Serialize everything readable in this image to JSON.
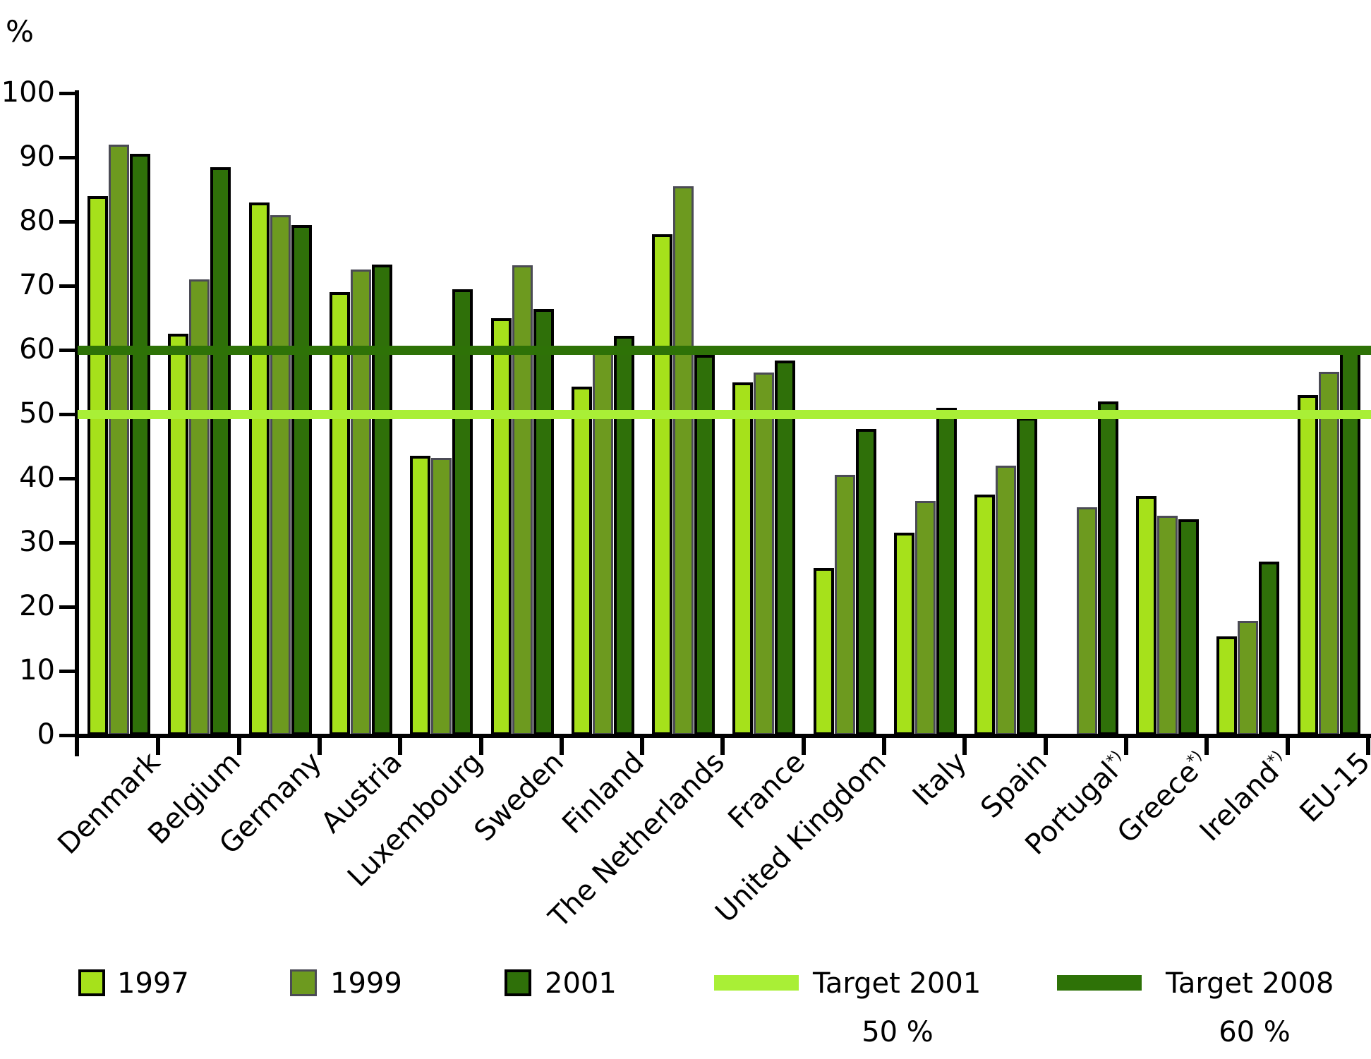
{
  "unit_label": "%",
  "chart_data": {
    "type": "bar",
    "title": "",
    "xlabel": "",
    "ylabel": "%",
    "ylim": [
      0,
      100
    ],
    "y_ticks": [
      0,
      10,
      20,
      30,
      40,
      50,
      60,
      70,
      80,
      90,
      100
    ],
    "grid": false,
    "legend_position": "bottom",
    "categories": [
      "Denmark",
      "Belgium",
      "Germany",
      "Austria",
      "Luxembourg",
      "Sweden",
      "Finland",
      "The Netherlands",
      "France",
      "United Kingdom",
      "Italy",
      "Spain",
      "Portugal",
      "Greece",
      "Ireland",
      "EU-15"
    ],
    "category_footnotes": [
      "",
      "",
      "",
      "",
      "",
      "",
      "",
      "",
      "",
      "",
      "",
      "",
      "*)",
      "*)",
      "*)",
      ""
    ],
    "series": [
      {
        "name": "1997",
        "color": "#a6e11b",
        "border_color": "#000000",
        "values": [
          84,
          62.5,
          83,
          69,
          43.5,
          65,
          54.3,
          78,
          55,
          26,
          31.5,
          37.5,
          null,
          37.2,
          15.4,
          53
        ]
      },
      {
        "name": "1999",
        "color": "#6d9a1f",
        "border_color": "#4b4b55",
        "values": [
          92,
          71,
          81,
          72.5,
          43.2,
          73.2,
          60.5,
          85.5,
          56.5,
          40.5,
          36.5,
          42,
          35.5,
          34.2,
          17.8,
          56.6
        ]
      },
      {
        "name": "2001",
        "color": "#2f7009",
        "border_color": "#000000",
        "values": [
          90.5,
          88.5,
          79.5,
          73.3,
          69.5,
          66.4,
          62.2,
          59.2,
          58.3,
          47.7,
          51,
          49.5,
          52,
          33.6,
          27,
          60.3
        ]
      }
    ],
    "target_lines": [
      {
        "name": "Target 2001",
        "value": 50,
        "color": "#a9ef36"
      },
      {
        "name": "Target 2008",
        "value": 60,
        "color": "#2e7207"
      }
    ]
  },
  "legend": {
    "s1997": "1997",
    "s1999": "1999",
    "s2001": "2001",
    "t2001": "Target 2001",
    "t2001_sub": "50 %",
    "t2008": "Target 2008",
    "t2008_sub": "60 %"
  }
}
